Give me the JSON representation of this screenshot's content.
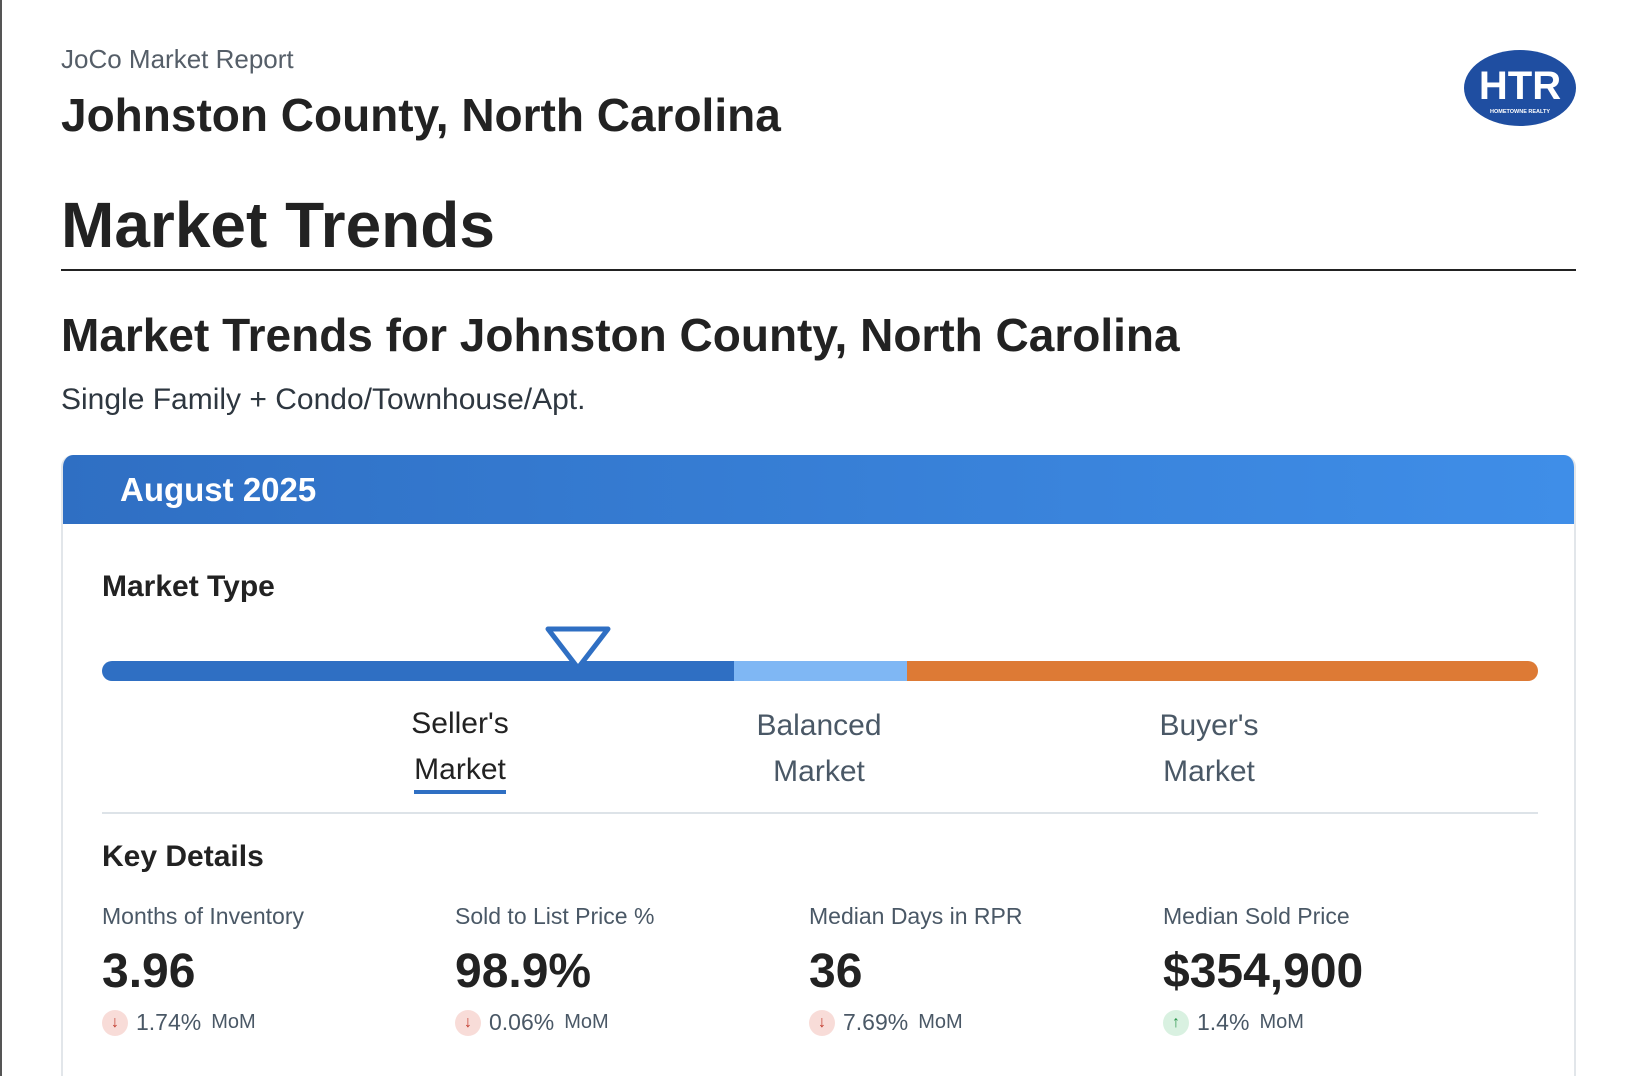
{
  "header": {
    "report_label": "JoCo Market Report",
    "county_title": "Johnston County, North Carolina",
    "logo_text": "HTR",
    "logo_subtext": "HOMETOWNE REALTY"
  },
  "section": {
    "title": "Market Trends",
    "trends_title": "Market Trends for Johnston County, North Carolina",
    "property_type": "Single Family + Condo/Townhouse/Apt."
  },
  "card": {
    "period": "August 2025",
    "market_type_label": "Market Type",
    "market_position": 0.33,
    "market_types": {
      "seller_line1": "Seller's",
      "seller_line2": "Market",
      "balanced_line1": "Balanced",
      "balanced_line2": "Market",
      "buyer_line1": "Buyer's",
      "buyer_line2": "Market"
    },
    "active_market_type": "Seller's Market",
    "key_details_label": "Key Details",
    "stats": [
      {
        "label": "Months of Inventory",
        "value": "3.96",
        "direction": "down",
        "change": "1.74%",
        "period": "MoM"
      },
      {
        "label": "Sold to List Price %",
        "value": "98.9%",
        "direction": "down",
        "change": "0.06%",
        "period": "MoM"
      },
      {
        "label": "Median Days in RPR",
        "value": "36",
        "direction": "down",
        "change": "7.69%",
        "period": "MoM"
      },
      {
        "label": "Median Sold Price",
        "value": "$354,900",
        "direction": "up",
        "change": "1.4%",
        "period": "MoM"
      }
    ],
    "colors": {
      "seller": "#2f6fc3",
      "balanced": "#7fb7f4",
      "buyer": "#dd7a35"
    }
  }
}
